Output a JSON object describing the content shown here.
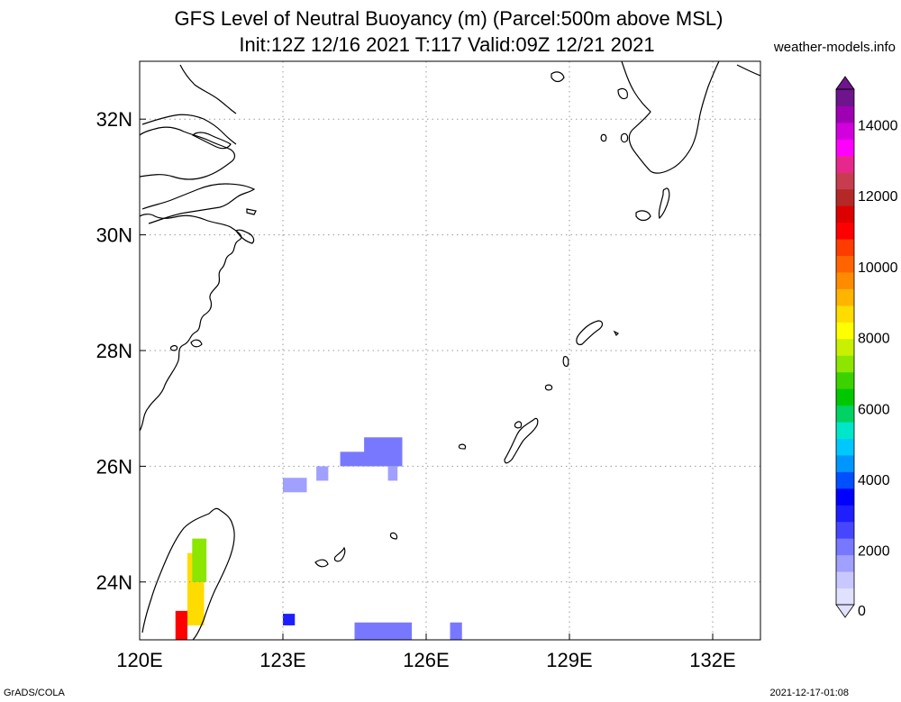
{
  "header": {
    "title_line1": "GFS Level of Neutral Buoyancy (m) (Parcel:500m above MSL)",
    "title_line2": "Init:12Z 12/16 2021 T:117 Valid:09Z 12/21 2021",
    "site": "weather-models.info"
  },
  "footer": {
    "left": "GrADS/COLA",
    "right": "2021-12-17-01:08"
  },
  "map": {
    "lon_range": [
      120,
      133
    ],
    "lat_range": [
      23,
      33
    ],
    "lon_ticks": [
      {
        "value": 120,
        "label": "120E"
      },
      {
        "value": 123,
        "label": "123E"
      },
      {
        "value": 126,
        "label": "126E"
      },
      {
        "value": 129,
        "label": "129E"
      },
      {
        "value": 132,
        "label": "132E"
      }
    ],
    "lat_ticks": [
      {
        "value": 24,
        "label": "24N"
      },
      {
        "value": 26,
        "label": "26N"
      },
      {
        "value": 28,
        "label": "28N"
      },
      {
        "value": 30,
        "label": "30N"
      },
      {
        "value": 32,
        "label": "32N"
      }
    ],
    "grid": true,
    "coastline_color": "#000000"
  },
  "colorbar": {
    "labels": [
      "0",
      "2000",
      "4000",
      "6000",
      "8000",
      "10000",
      "12000",
      "14000"
    ],
    "range": [
      0,
      15000
    ],
    "colors": [
      "#e0e0ff",
      "#c8c8ff",
      "#a0a0ff",
      "#7878ff",
      "#4646ff",
      "#1e1eff",
      "#0000ff",
      "#0050ff",
      "#0096ff",
      "#00c8ff",
      "#00e6c8",
      "#00d264",
      "#00c800",
      "#3cd200",
      "#8ce600",
      "#c8f000",
      "#ffff00",
      "#ffdc00",
      "#ffb400",
      "#ff8c00",
      "#ff6400",
      "#ff3c00",
      "#ff0000",
      "#dc0000",
      "#b42828",
      "#c83c50",
      "#e6288c",
      "#ff00ff",
      "#d200dc",
      "#a000b4",
      "#6e148c"
    ]
  },
  "chart_data": {
    "type": "heatmap",
    "title": "GFS Level of Neutral Buoyancy (m) (Parcel:500m above MSL)",
    "subtitle": "Init:12Z 12/16 2021 T:117 Valid:09Z 12/21 2021",
    "units": "m",
    "cells": [
      {
        "lon0": 124.7,
        "lon1": 125.5,
        "lat0": 26.0,
        "lat1": 26.5,
        "value": 1500
      },
      {
        "lon0": 124.2,
        "lon1": 125.2,
        "lat0": 26.0,
        "lat1": 26.25,
        "value": 1500
      },
      {
        "lon0": 125.2,
        "lon1": 125.4,
        "lat0": 25.75,
        "lat1": 26.0,
        "value": 1300
      },
      {
        "lon0": 123.7,
        "lon1": 123.95,
        "lat0": 25.75,
        "lat1": 26.0,
        "value": 1400
      },
      {
        "lon0": 123.0,
        "lon1": 123.5,
        "lat0": 25.55,
        "lat1": 25.8,
        "value": 1100
      },
      {
        "lon0": 123.0,
        "lon1": 123.25,
        "lat0": 23.25,
        "lat1": 23.45,
        "value": 2600
      },
      {
        "lon0": 124.5,
        "lon1": 125.7,
        "lat0": 23.0,
        "lat1": 23.3,
        "value": 1700
      },
      {
        "lon0": 126.5,
        "lon1": 126.75,
        "lat0": 23.0,
        "lat1": 23.3,
        "value": 1700
      },
      {
        "lon0": 120.75,
        "lon1": 121.0,
        "lat0": 23.0,
        "lat1": 23.5,
        "value": 11000
      },
      {
        "lon0": 121.0,
        "lon1": 121.35,
        "lat0": 23.25,
        "lat1": 24.5,
        "value": 8500
      },
      {
        "lon0": 121.1,
        "lon1": 121.4,
        "lat0": 24.0,
        "lat1": 24.75,
        "value": 7000
      }
    ]
  }
}
